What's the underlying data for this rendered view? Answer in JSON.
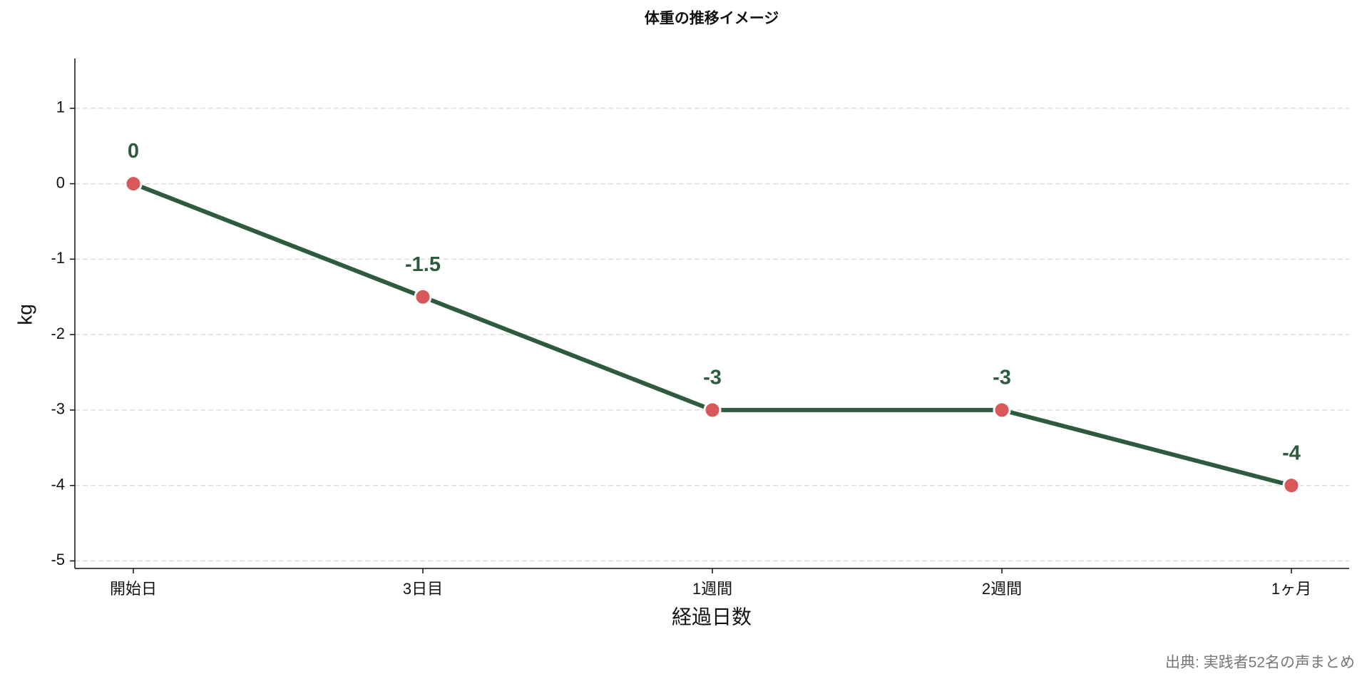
{
  "chart_data": {
    "type": "line",
    "title": "体重の推移イメージ",
    "x_label": "経過日数",
    "y_label": "kg",
    "source": "出典: 実践者52名の声まとめ",
    "categories": [
      "開始日",
      "3日目",
      "1週間",
      "2週間",
      "1ヶ月"
    ],
    "values": [
      0,
      -1.5,
      -3,
      -3,
      -4
    ],
    "color": "#2e5b3e",
    "marker_color": "#d9595a",
    "ylim": [
      -5.1,
      1.66
    ],
    "yticks": [
      -5,
      -4,
      -3,
      -2,
      -1,
      0,
      1
    ],
    "grid": true
  }
}
